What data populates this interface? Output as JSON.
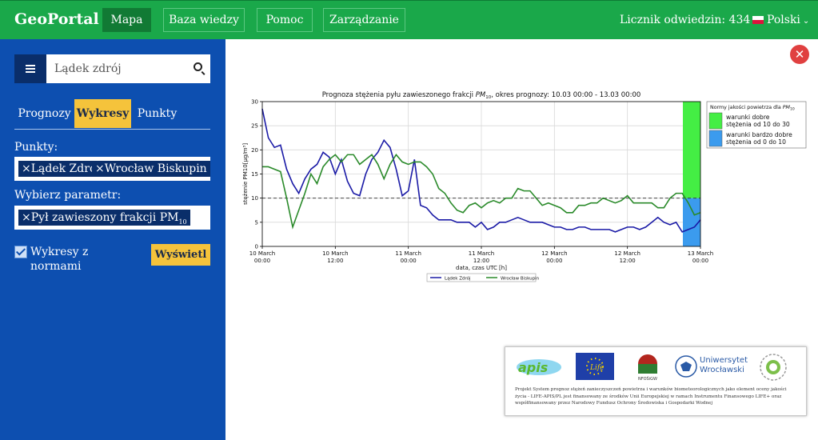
{
  "nav": {
    "brand": "GeoPortal",
    "items": [
      {
        "label": "Mapa",
        "active": true
      },
      {
        "label": "Baza wiedzy",
        "active": false
      },
      {
        "label": "Pomoc",
        "active": false
      },
      {
        "label": "Zarządzanie",
        "active": false
      }
    ],
    "counter": "Licznik odwiedzin: 434",
    "language": "Polski"
  },
  "sidebar": {
    "search": {
      "value": "Lądek zdrój",
      "icon": "search-icon"
    },
    "tabs": [
      {
        "label": "Prognozy",
        "active": false
      },
      {
        "label": "Wykresy",
        "active": true
      },
      {
        "label": "Punkty",
        "active": false
      }
    ],
    "points_label": "Punkty:",
    "points": [
      "Lądek Zdrój",
      "Wrocław Biskupin"
    ],
    "param_label": "Wybierz parametr:",
    "param": "Pył zawieszony frakcji PM",
    "param_sub": "10",
    "checkbox": {
      "label": "Wykresy z normami",
      "checked": true
    },
    "show_button": "Wyświetl"
  },
  "close_icon": "close-icon",
  "chart_data": {
    "type": "line",
    "title": "Prognoza stężenia pyłu zawieszonego frakcji PM10, okres prognozy: 10.03 00:00 - 13.03 00:00",
    "title_pre": "Prognoza stężenia pyłu zawieszonego frakcji ",
    "title_pm": "PM",
    "title_sub": "10",
    "title_post": ", okres prognozy: 10.03 00:00 - 13.03 00:00",
    "xlabel": "data, czas UTC [h]",
    "ylabel": "stężenie PM10[μg/m³]",
    "ylim": [
      0,
      30
    ],
    "xlim_hours": [
      0,
      72
    ],
    "yticks": [
      0,
      5,
      10,
      15,
      20,
      25,
      30
    ],
    "xticks": [
      {
        "h": 0,
        "line1": "10 March",
        "line2": "00:00"
      },
      {
        "h": 12,
        "line1": "10 March",
        "line2": "12:00"
      },
      {
        "h": 24,
        "line1": "11 March",
        "line2": "00:00"
      },
      {
        "h": 36,
        "line1": "11 March",
        "line2": "12:00"
      },
      {
        "h": 48,
        "line1": "12 March",
        "line2": "00:00"
      },
      {
        "h": 60,
        "line1": "12 March",
        "line2": "12:00"
      },
      {
        "h": 72,
        "line1": "13 March",
        "line2": "00:00"
      }
    ],
    "norm_line": 10,
    "series": [
      {
        "name": "Lądek Zdrój",
        "color": "#1a1aa6",
        "x": [
          0,
          1,
          2,
          3,
          4,
          5,
          6,
          7,
          8,
          9,
          10,
          11,
          12,
          13,
          14,
          15,
          16,
          17,
          18,
          19,
          20,
          21,
          22,
          23,
          24,
          25,
          26,
          27,
          28,
          29,
          30,
          31,
          32,
          33,
          34,
          35,
          36,
          37,
          38,
          39,
          40,
          41,
          42,
          43,
          44,
          45,
          46,
          47,
          48,
          49,
          50,
          51,
          52,
          53,
          54,
          55,
          56,
          57,
          58,
          59,
          60,
          61,
          62,
          63,
          64,
          65,
          66,
          67,
          68,
          69,
          70,
          71,
          72
        ],
        "values": [
          28.5,
          22.5,
          20.5,
          21,
          16,
          13,
          11,
          14,
          16,
          17,
          19.5,
          18.5,
          15,
          18,
          13.5,
          11,
          10.5,
          15,
          18,
          19.5,
          22,
          20.5,
          16,
          10.5,
          11.5,
          18,
          8.5,
          8,
          6.5,
          5.5,
          5.5,
          5.5,
          5,
          5,
          5,
          4,
          5,
          3.5,
          4,
          5,
          5,
          5.5,
          6,
          5.5,
          5,
          5,
          5,
          4.5,
          4,
          4,
          3.5,
          3.5,
          4,
          4,
          3.5,
          3.5,
          3.5,
          3.5,
          3,
          3.5,
          4,
          4,
          3.5,
          4,
          5,
          6,
          5,
          4.5,
          5,
          3,
          3.5,
          4,
          5.5
        ]
      },
      {
        "name": "Wrocław Biskupin",
        "color": "#2a8a2a",
        "x": [
          0,
          1,
          2,
          3,
          4,
          5,
          6,
          7,
          8,
          9,
          10,
          11,
          12,
          13,
          14,
          15,
          16,
          17,
          18,
          19,
          20,
          21,
          22,
          23,
          24,
          25,
          26,
          27,
          28,
          29,
          30,
          31,
          32,
          33,
          34,
          35,
          36,
          37,
          38,
          39,
          40,
          41,
          42,
          43,
          44,
          45,
          46,
          47,
          48,
          49,
          50,
          51,
          52,
          53,
          54,
          55,
          56,
          57,
          58,
          59,
          60,
          61,
          62,
          63,
          64,
          65,
          66,
          67,
          68,
          69,
          70,
          71,
          72
        ],
        "values": [
          16.5,
          16.5,
          16,
          15.5,
          10,
          4,
          7.5,
          11,
          15,
          13,
          16.5,
          18,
          19,
          17.5,
          19,
          19,
          17,
          18,
          19,
          17,
          14,
          17,
          19,
          17.5,
          17,
          17.5,
          17.5,
          16.5,
          15,
          12,
          11,
          9,
          7.5,
          7,
          8.5,
          9,
          8,
          9,
          9.5,
          9,
          10,
          10,
          12,
          11.5,
          11.5,
          10,
          8.5,
          9,
          8.5,
          8,
          7,
          7,
          8.5,
          8.5,
          9,
          9,
          10,
          9.5,
          9,
          9.5,
          10.5,
          9,
          9,
          9,
          9,
          8,
          8,
          10,
          11,
          11,
          9,
          6.5,
          7
        ]
      }
    ],
    "legend": [
      {
        "name": "Lądek Zdrój",
        "color": "#1a1aa6"
      },
      {
        "name": "Wrocław Biskupin",
        "color": "#2a8a2a"
      }
    ],
    "legend_placement": "bottom-center",
    "norms": {
      "title_pre": "Normy jakości powietrza dla ",
      "title_pm": "PM",
      "title_sub": "10",
      "items": [
        {
          "label1": "warunki dobre",
          "label2": "stężenia od 10 do 30",
          "color": "#44ee44",
          "from": 10,
          "to": 30
        },
        {
          "label1": "warunki bardzo dobre",
          "label2": "stężenia od 0 do 10",
          "color": "#3b9bee",
          "from": 0,
          "to": 10
        }
      ]
    },
    "grid": true
  },
  "footer": {
    "logos": [
      "apis-logo",
      "eu-flag-logo",
      "nfosigw-logo",
      "uwr-logo",
      "life-logo"
    ],
    "uni_name_1": "Uniwersytet",
    "uni_name_2": "Wrocławski",
    "text": "Projekt System prognoz stężeń zanieczyszczeń powietrza i warunków biometeorologicznych jako element oceny jakości życia - LIFE-APIS/PL jest finansowany ze środków Unii Europejskiej w ramach Instrumentu Finansowego LIFE+ oraz współfinansowany przez Narodowy Fundusz Ochrony Środowiska i Gospodarki Wodnej"
  }
}
